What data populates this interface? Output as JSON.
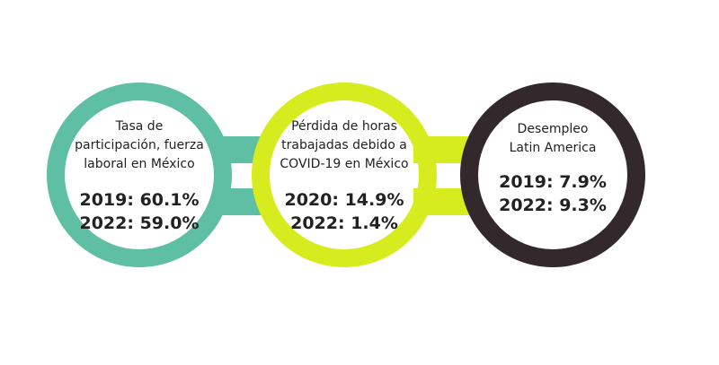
{
  "colors": {
    "teal": "#5ebfa5",
    "lime": "#d6ec1e",
    "dark": "#33292c",
    "text": "#222222"
  },
  "circles": [
    {
      "id": "participation",
      "color": "teal",
      "label_lines": [
        "Tasa de",
        "participación, fuerza",
        "laboral en México"
      ],
      "stats": [
        "2019: 60.1%",
        "2022: 59.0%"
      ]
    },
    {
      "id": "hours-lost",
      "color": "lime",
      "label_lines": [
        "Pérdida de horas",
        "trabajadas debido a",
        "COVID-19 en México"
      ],
      "stats": [
        "2020: 14.9%",
        "2022: 1.4%"
      ]
    },
    {
      "id": "unemployment",
      "color": "dark",
      "label_lines": [
        "Desempleo",
        "Latin America"
      ],
      "stats": [
        "2019: 7.9%",
        "2022: 9.3%"
      ]
    }
  ]
}
